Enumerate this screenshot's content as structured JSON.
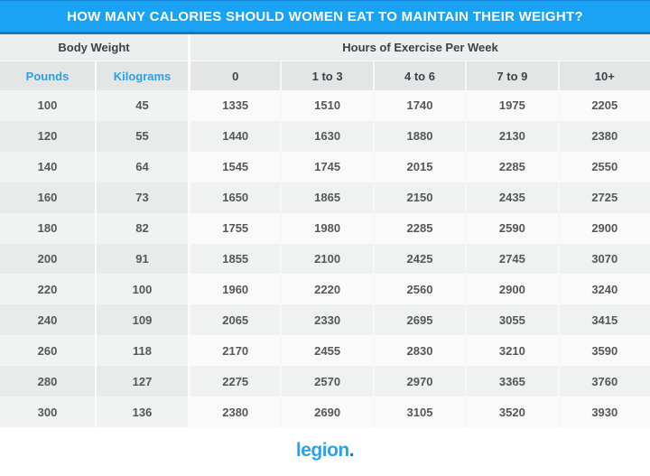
{
  "title": "HOW MANY CALORIES SHOULD WOMEN EAT TO MAINTAIN THEIR WEIGHT?",
  "table": {
    "group_headers": {
      "body_weight": "Body Weight",
      "exercise": "Hours of Exercise Per Week"
    },
    "columns": [
      "Pounds",
      "Kilograms",
      "0",
      "1 to 3",
      "4 to 6",
      "7 to 9",
      "10+"
    ],
    "rows": [
      [
        100,
        45,
        1335,
        1510,
        1740,
        1975,
        2205
      ],
      [
        120,
        55,
        1440,
        1630,
        1880,
        2130,
        2380
      ],
      [
        140,
        64,
        1545,
        1745,
        2015,
        2285,
        2550
      ],
      [
        160,
        73,
        1650,
        1865,
        2150,
        2435,
        2725
      ],
      [
        180,
        82,
        1755,
        1980,
        2285,
        2590,
        2900
      ],
      [
        200,
        91,
        1855,
        2100,
        2425,
        2745,
        3070
      ],
      [
        220,
        100,
        1960,
        2220,
        2560,
        2900,
        3240
      ],
      [
        240,
        109,
        2065,
        2330,
        2695,
        3055,
        3415
      ],
      [
        260,
        118,
        2170,
        2455,
        2830,
        3210,
        3590
      ],
      [
        280,
        127,
        2275,
        2570,
        2970,
        3365,
        3760
      ],
      [
        300,
        136,
        2380,
        2690,
        3105,
        3520,
        3930
      ]
    ]
  },
  "footer": {
    "logo_text": "legion",
    "logo_dot": "."
  },
  "colors": {
    "header_cyan": "#1aa2f4",
    "header_border_blue": "#1a74bd",
    "group_header_bg": "#edeeee",
    "subheader_bg": "#e4e6e6",
    "row_light_left": "#f1f2f2",
    "row_light_data": "#fafafa",
    "row_dark_left": "#e9eaea",
    "row_dark_data": "#f0f1f1",
    "label_blue": "#2e9fe2",
    "text_dark": "#3a4349",
    "number_gray": "#54585b",
    "logo_cyan": "#2aa1e9"
  },
  "chart_data": {
    "type": "table",
    "title": "HOW MANY CALORIES SHOULD WOMEN EAT TO MAINTAIN THEIR WEIGHT?",
    "column_groups": [
      "Body Weight",
      "Hours of Exercise Per Week"
    ],
    "columns": [
      "Pounds",
      "Kilograms",
      "0",
      "1 to 3",
      "4 to 6",
      "7 to 9",
      "10+"
    ],
    "rows": [
      [
        100,
        45,
        1335,
        1510,
        1740,
        1975,
        2205
      ],
      [
        120,
        55,
        1440,
        1630,
        1880,
        2130,
        2380
      ],
      [
        140,
        64,
        1545,
        1745,
        2015,
        2285,
        2550
      ],
      [
        160,
        73,
        1650,
        1865,
        2150,
        2435,
        2725
      ],
      [
        180,
        82,
        1755,
        1980,
        2285,
        2590,
        2900
      ],
      [
        200,
        91,
        1855,
        2100,
        2425,
        2745,
        3070
      ],
      [
        220,
        100,
        1960,
        2220,
        2560,
        2900,
        3240
      ],
      [
        240,
        109,
        2065,
        2330,
        2695,
        3055,
        3415
      ],
      [
        260,
        118,
        2170,
        2455,
        2830,
        3210,
        3590
      ],
      [
        280,
        127,
        2275,
        2570,
        2970,
        3365,
        3760
      ],
      [
        300,
        136,
        2380,
        2690,
        3105,
        3520,
        3930
      ]
    ]
  }
}
